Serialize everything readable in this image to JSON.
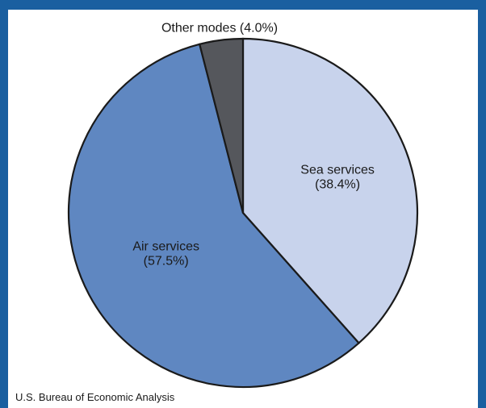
{
  "chart_data": {
    "type": "pie",
    "slices": [
      {
        "label": "Sea services",
        "value_label": "(38.4%)",
        "value": 38.4,
        "color": "#c8d3ec"
      },
      {
        "label": "Air services",
        "value_label": "(57.5%)",
        "value": 57.5,
        "color": "#5f87c1"
      },
      {
        "label": "Other modes (4.0%)",
        "value_label": "",
        "value": 4.0,
        "color": "#55575c"
      }
    ],
    "start": "12 o'clock",
    "direction": "clockwise"
  },
  "source": "U.S. Bureau of Economic Analysis"
}
